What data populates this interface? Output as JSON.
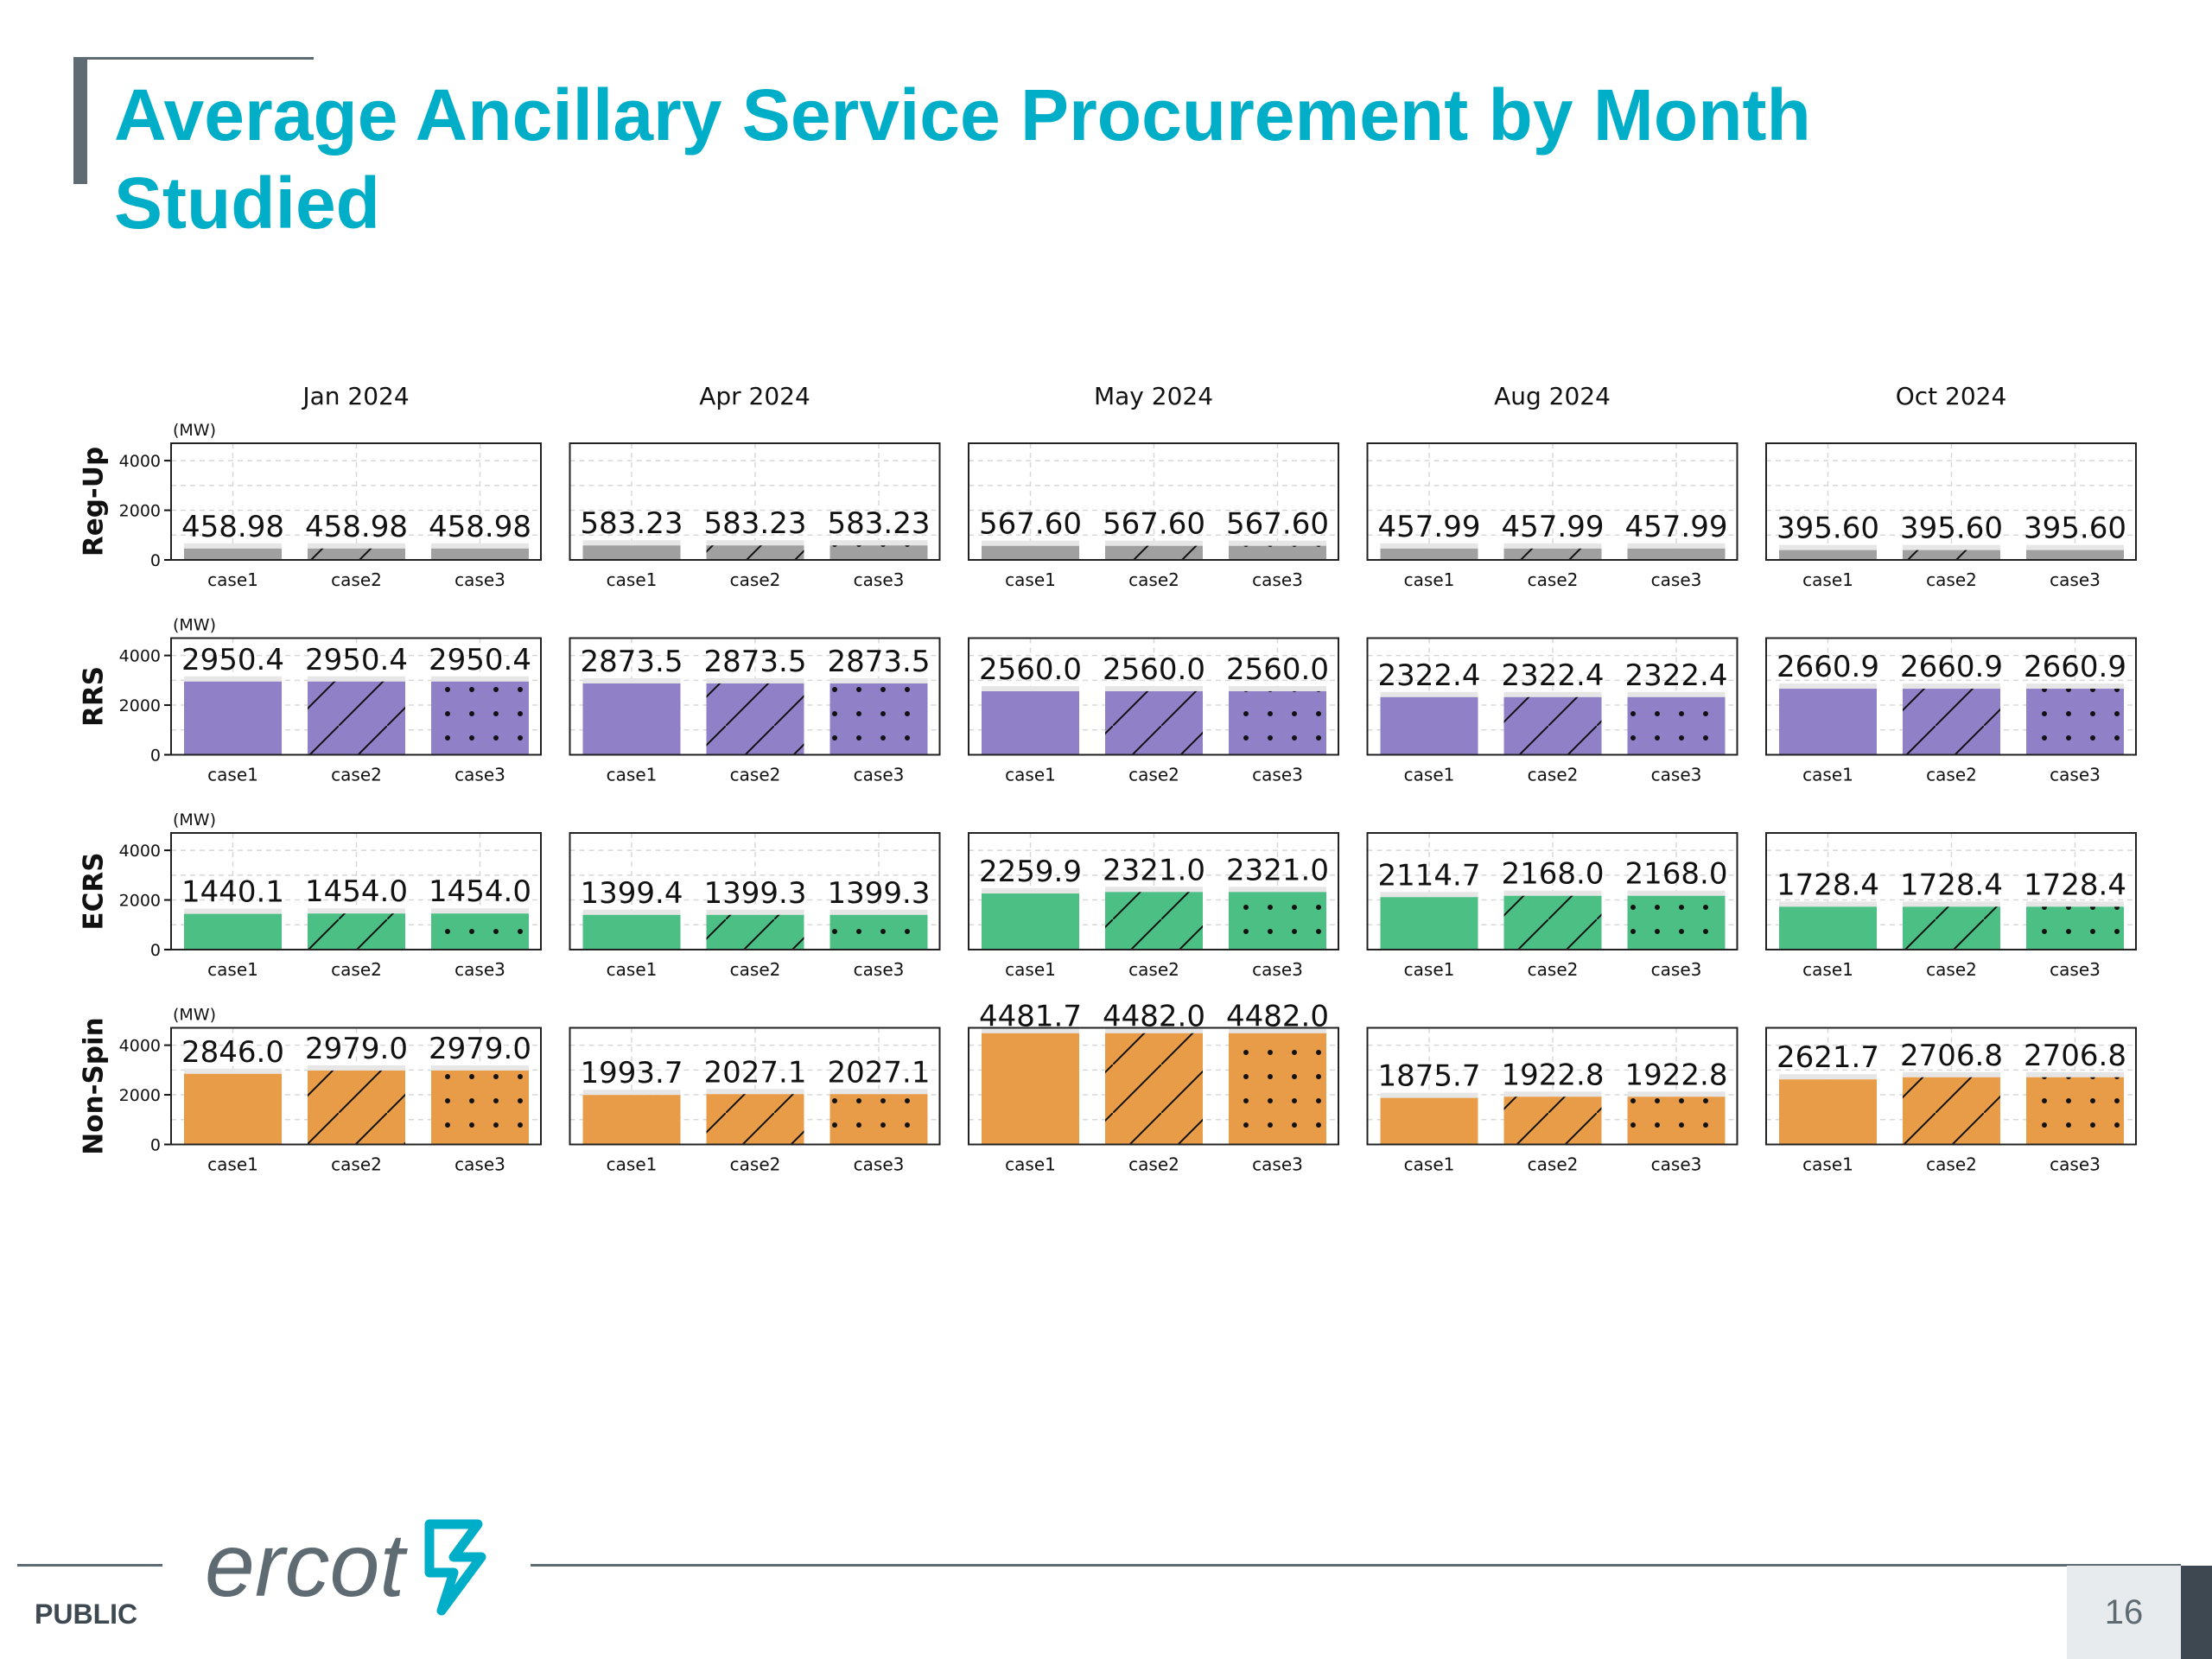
{
  "slide": {
    "title": "Average Ancillary Service Procurement by Month\nStudied",
    "footer_label": "PUBLIC",
    "logo_text": "ercot",
    "page_number": "16"
  },
  "colors": {
    "title": "#00aec7",
    "Reg-Up": "#a0a0a0",
    "RRS": "#9080c8",
    "ECRS": "#4cc084",
    "Non-Spin": "#e89c48",
    "label_bg": "#e6e6e6"
  },
  "chart_data": {
    "type": "bar",
    "months": [
      "Jan 2024",
      "Apr 2024",
      "May 2024",
      "Aug 2024",
      "Oct 2024"
    ],
    "services": [
      "Reg-Up",
      "RRS",
      "ECRS",
      "Non-Spin"
    ],
    "categories": [
      "case1",
      "case2",
      "case3"
    ],
    "hatches": [
      "none",
      "diagonal",
      "dots"
    ],
    "unit_label": "(MW)",
    "yticks": [
      0,
      2000,
      4000
    ],
    "ylim": [
      0,
      4700
    ],
    "grid": true,
    "values": {
      "Reg-Up": [
        [
          458.98,
          458.98,
          458.98
        ],
        [
          583.23,
          583.23,
          583.23
        ],
        [
          567.6,
          567.6,
          567.6
        ],
        [
          457.99,
          457.99,
          457.99
        ],
        [
          395.6,
          395.6,
          395.6
        ]
      ],
      "RRS": [
        [
          2950.4,
          2950.4,
          2950.4
        ],
        [
          2873.5,
          2873.5,
          2873.5
        ],
        [
          2560.0,
          2560.0,
          2560.0
        ],
        [
          2322.4,
          2322.4,
          2322.4
        ],
        [
          2660.9,
          2660.9,
          2660.9
        ]
      ],
      "ECRS": [
        [
          1440.1,
          1454.0,
          1454.0
        ],
        [
          1399.4,
          1399.3,
          1399.3
        ],
        [
          2259.9,
          2321.0,
          2321.0
        ],
        [
          2114.7,
          2168.0,
          2168.0
        ],
        [
          1728.4,
          1728.4,
          1728.4
        ]
      ],
      "Non-Spin": [
        [
          2846.0,
          2979.0,
          2979.0
        ],
        [
          1993.7,
          2027.1,
          2027.1
        ],
        [
          4481.7,
          4482.0,
          4482.0
        ],
        [
          1875.7,
          1922.8,
          1922.8
        ],
        [
          2621.7,
          2706.8,
          2706.8
        ]
      ]
    },
    "data_labels": {
      "Reg-Up": [
        [
          "458.98",
          "458.98",
          "458.98"
        ],
        [
          "583.23",
          "583.23",
          "583.23"
        ],
        [
          "567.60",
          "567.60",
          "567.60"
        ],
        [
          "457.99",
          "457.99",
          "457.99"
        ],
        [
          "395.60",
          "395.60",
          "395.60"
        ]
      ],
      "RRS": [
        [
          "2950.4",
          "2950.4",
          "2950.4"
        ],
        [
          "2873.5",
          "2873.5",
          "2873.5"
        ],
        [
          "2560.0",
          "2560.0",
          "2560.0"
        ],
        [
          "2322.4",
          "2322.4",
          "2322.4"
        ],
        [
          "2660.9",
          "2660.9",
          "2660.9"
        ]
      ],
      "ECRS": [
        [
          "1440.1",
          "1454.0",
          "1454.0"
        ],
        [
          "1399.4",
          "1399.3",
          "1399.3"
        ],
        [
          "2259.9",
          "2321.0",
          "2321.0"
        ],
        [
          "2114.7",
          "2168.0",
          "2168.0"
        ],
        [
          "1728.4",
          "1728.4",
          "1728.4"
        ]
      ],
      "Non-Spin": [
        [
          "2846.0",
          "2979.0",
          "2979.0"
        ],
        [
          "1993.7",
          "2027.1",
          "2027.1"
        ],
        [
          "4481.7",
          "4482.0",
          "4482.0"
        ],
        [
          "1875.7",
          "1922.8",
          "1922.8"
        ],
        [
          "2621.7",
          "2706.8",
          "2706.8"
        ]
      ]
    }
  }
}
